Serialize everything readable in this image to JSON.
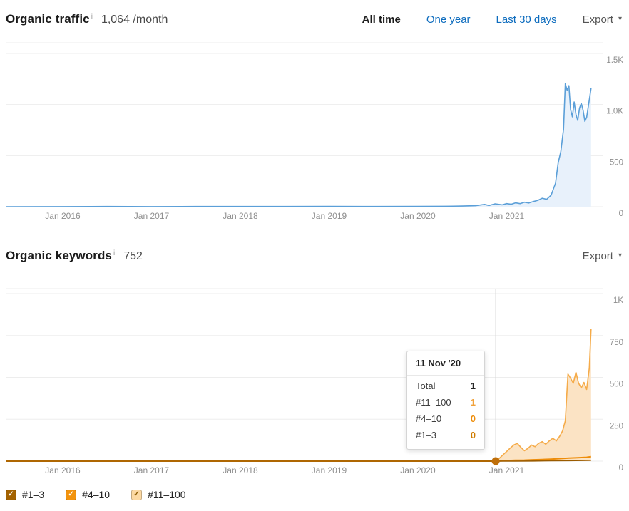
{
  "icons": {
    "check": "✓",
    "caret_down": "▾",
    "info": "i"
  },
  "traffic_section": {
    "title": "Organic traffic",
    "metric": "1,064 /month",
    "tabs": [
      {
        "label": "All time",
        "active": true
      },
      {
        "label": "One year",
        "active": false
      },
      {
        "label": "Last 30 days",
        "active": false
      }
    ],
    "export_label": "Export"
  },
  "keywords_section": {
    "title": "Organic keywords",
    "metric": "752",
    "export_label": "Export"
  },
  "tooltip": {
    "date": "11 Nov '20",
    "rows": [
      {
        "label": "Total",
        "value": "1",
        "value_color": "#262626"
      },
      {
        "label": "#11–100",
        "value": "1",
        "value_color": "#f1a23a"
      },
      {
        "label": "#4–10",
        "value": "0",
        "value_color": "#ee8d0a"
      },
      {
        "label": "#1–3",
        "value": "0",
        "value_color": "#cf7c00"
      }
    ]
  },
  "legend": [
    {
      "label": "#1–3",
      "box_color": "#a36200",
      "check_color": "#ffffff"
    },
    {
      "label": "#4–10",
      "box_color": "#f2930d",
      "check_color": "#ffffff"
    },
    {
      "label": "#11–100",
      "box_color": "#fcd9a3",
      "check_color": "#8a5a00"
    }
  ],
  "chart_data": [
    {
      "type": "area",
      "title": "Organic traffic",
      "y_unit": "visits/month",
      "current_value": 1064,
      "x_range": [
        2015.36,
        2022.08
      ],
      "y_range": [
        0,
        1570
      ],
      "grid": true,
      "legend_position": "none",
      "x_ticks": [
        {
          "x": 2016,
          "label": "Jan 2016"
        },
        {
          "x": 2017,
          "label": "Jan 2017"
        },
        {
          "x": 2018,
          "label": "Jan 2018"
        },
        {
          "x": 2019,
          "label": "Jan 2019"
        },
        {
          "x": 2020,
          "label": "Jan 2020"
        },
        {
          "x": 2021,
          "label": "Jan 2021"
        }
      ],
      "y_ticks": [
        {
          "y": 1500,
          "label": "1.5K"
        },
        {
          "y": 1000,
          "label": "1.0K"
        },
        {
          "y": 500,
          "label": "500"
        },
        {
          "y": 0,
          "label": "0"
        }
      ],
      "line_color": "#5b9fd8",
      "fill_color": "#e8f1fb",
      "points": [
        [
          2015.36,
          0
        ],
        [
          2016.0,
          1
        ],
        [
          2016.5,
          2
        ],
        [
          2017.0,
          1
        ],
        [
          2017.5,
          2
        ],
        [
          2018.0,
          2
        ],
        [
          2018.5,
          2
        ],
        [
          2019.0,
          3
        ],
        [
          2019.5,
          2
        ],
        [
          2020.0,
          3
        ],
        [
          2020.3,
          4
        ],
        [
          2020.5,
          6
        ],
        [
          2020.65,
          10
        ],
        [
          2020.75,
          22
        ],
        [
          2020.8,
          12
        ],
        [
          2020.87,
          28
        ],
        [
          2020.95,
          18
        ],
        [
          2021.0,
          30
        ],
        [
          2021.05,
          24
        ],
        [
          2021.1,
          38
        ],
        [
          2021.15,
          30
        ],
        [
          2021.2,
          44
        ],
        [
          2021.25,
          36
        ],
        [
          2021.3,
          50
        ],
        [
          2021.35,
          62
        ],
        [
          2021.4,
          82
        ],
        [
          2021.45,
          72
        ],
        [
          2021.5,
          112
        ],
        [
          2021.55,
          230
        ],
        [
          2021.58,
          430
        ],
        [
          2021.61,
          540
        ],
        [
          2021.64,
          760
        ],
        [
          2021.66,
          1205
        ],
        [
          2021.68,
          1140
        ],
        [
          2021.7,
          1185
        ],
        [
          2021.72,
          950
        ],
        [
          2021.74,
          880
        ],
        [
          2021.76,
          1025
        ],
        [
          2021.78,
          905
        ],
        [
          2021.8,
          845
        ],
        [
          2021.82,
          965
        ],
        [
          2021.84,
          1010
        ],
        [
          2021.86,
          945
        ],
        [
          2021.88,
          835
        ],
        [
          2021.9,
          875
        ],
        [
          2021.92,
          985
        ],
        [
          2021.95,
          1160
        ]
      ]
    },
    {
      "type": "stacked_area",
      "title": "Organic keywords",
      "current_value": 752,
      "x_range": [
        2015.36,
        2022.08
      ],
      "y_range": [
        0,
        1030
      ],
      "grid": true,
      "legend_position": "bottom",
      "crosshair_x": 2020.876,
      "marker": {
        "x": 2020.876,
        "y": 0,
        "color": "#bf6f0a",
        "date": "11 Nov '20",
        "total": 1
      },
      "x_ticks": [
        {
          "x": 2016,
          "label": "Jan 2016"
        },
        {
          "x": 2017,
          "label": "Jan 2017"
        },
        {
          "x": 2018,
          "label": "Jan 2018"
        },
        {
          "x": 2019,
          "label": "Jan 2019"
        },
        {
          "x": 2020,
          "label": "Jan 2020"
        },
        {
          "x": 2021,
          "label": "Jan 2021"
        }
      ],
      "y_ticks": [
        {
          "y": 1000,
          "label": "1K"
        },
        {
          "y": 750,
          "label": "750"
        },
        {
          "y": 500,
          "label": "500"
        },
        {
          "y": 250,
          "label": "250"
        },
        {
          "y": 0,
          "label": "0"
        }
      ],
      "series": [
        {
          "name": "#11–100",
          "color": "#f5ab49",
          "fill": "#fbe3c4",
          "points": [
            [
              2015.36,
              0
            ],
            [
              2016,
              0
            ],
            [
              2016.5,
              1
            ],
            [
              2017,
              0
            ],
            [
              2017.5,
              1
            ],
            [
              2018,
              1
            ],
            [
              2018.5,
              1
            ],
            [
              2019,
              2
            ],
            [
              2019.5,
              2
            ],
            [
              2020,
              1
            ],
            [
              2020.3,
              2
            ],
            [
              2020.6,
              1
            ],
            [
              2020.876,
              1
            ],
            [
              2020.92,
              18
            ],
            [
              2020.96,
              38
            ],
            [
              2021.0,
              58
            ],
            [
              2021.04,
              78
            ],
            [
              2021.08,
              96
            ],
            [
              2021.12,
              106
            ],
            [
              2021.16,
              82
            ],
            [
              2021.2,
              62
            ],
            [
              2021.24,
              76
            ],
            [
              2021.28,
              96
            ],
            [
              2021.32,
              86
            ],
            [
              2021.36,
              106
            ],
            [
              2021.4,
              116
            ],
            [
              2021.44,
              101
            ],
            [
              2021.48,
              121
            ],
            [
              2021.52,
              136
            ],
            [
              2021.56,
              121
            ],
            [
              2021.6,
              151
            ],
            [
              2021.63,
              181
            ],
            [
              2021.66,
              241
            ],
            [
              2021.69,
              520
            ],
            [
              2021.72,
              495
            ],
            [
              2021.75,
              465
            ],
            [
              2021.78,
              530
            ],
            [
              2021.81,
              465
            ],
            [
              2021.84,
              437
            ],
            [
              2021.87,
              470
            ],
            [
              2021.9,
              428
            ],
            [
              2021.93,
              555
            ],
            [
              2021.95,
              788
            ]
          ]
        },
        {
          "name": "#4–10",
          "color": "#ee8d0a",
          "points": [
            [
              2015.36,
              0
            ],
            [
              2018,
              0
            ],
            [
              2020.876,
              0
            ],
            [
              2021.0,
              3
            ],
            [
              2021.1,
              5
            ],
            [
              2021.2,
              6
            ],
            [
              2021.3,
              8
            ],
            [
              2021.4,
              10
            ],
            [
              2021.5,
              12
            ],
            [
              2021.6,
              15
            ],
            [
              2021.7,
              18
            ],
            [
              2021.8,
              20
            ],
            [
              2021.9,
              23
            ],
            [
              2021.95,
              27
            ]
          ]
        },
        {
          "name": "#1–3",
          "color": "#9a5b00",
          "points": [
            [
              2015.36,
              0
            ],
            [
              2020.876,
              0
            ],
            [
              2021.1,
              0
            ],
            [
              2021.3,
              1
            ],
            [
              2021.5,
              2
            ],
            [
              2021.7,
              3
            ],
            [
              2021.85,
              4
            ],
            [
              2021.95,
              5
            ]
          ]
        }
      ]
    }
  ]
}
